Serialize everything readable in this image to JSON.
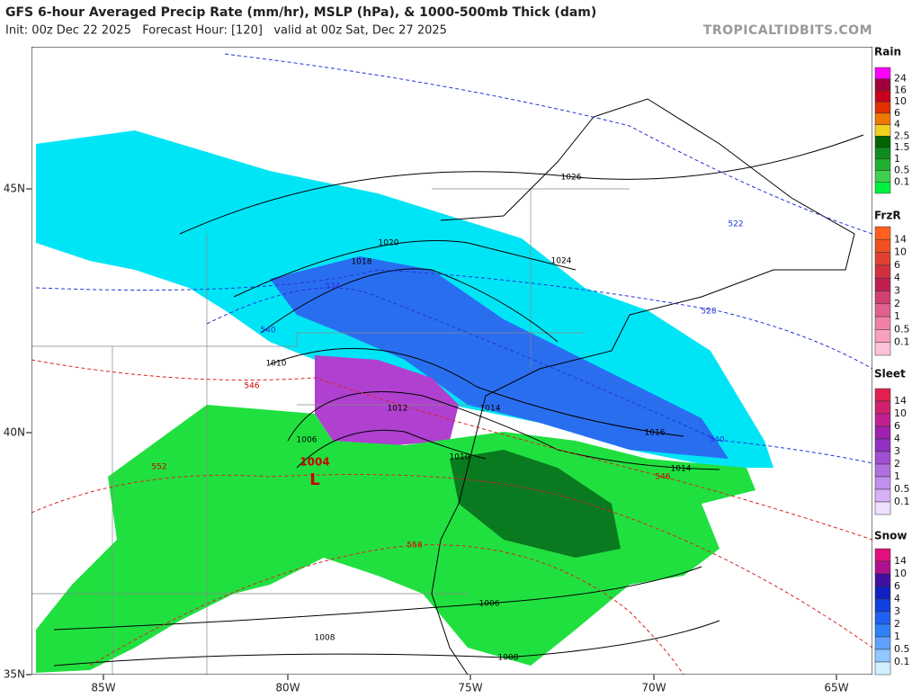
{
  "header": {
    "title": "GFS 6-hour Averaged Precip Rate (mm/hr), MSLP (hPa), & 1000-500mb Thick (dam)",
    "subtitle": "Init: 00z Dec 22 2025   Forecast Hour: [120]   valid at 00z Sat, Dec 27 2025",
    "watermark": "TROPICALTIDBITS.COM"
  },
  "map": {
    "longitude_labels": [
      "85W",
      "80W",
      "75W",
      "70W",
      "65W"
    ],
    "latitude_labels": [
      "45N",
      "40N",
      "35N"
    ],
    "isobar_labels": [
      "1026",
      "1024",
      "1020",
      "1018",
      "1014",
      "1016",
      "1014",
      "1012",
      "1010",
      "1010",
      "1006",
      "1006",
      "1008",
      "1008"
    ],
    "thickness_labels": [
      "522",
      "528",
      "534",
      "540",
      "540",
      "546",
      "546",
      "552",
      "558"
    ],
    "low": {
      "pressure": "1004",
      "symbol": "L"
    }
  },
  "legends": [
    {
      "title": "Rain",
      "labels": [
        "24",
        "16",
        "10",
        "6",
        "4",
        "2.5",
        "1.5",
        "1",
        "0.5",
        "0.1"
      ]
    },
    {
      "title": "FrzR",
      "labels": [
        "14",
        "10",
        "6",
        "4",
        "3",
        "2",
        "1",
        "0.5",
        "0.1"
      ]
    },
    {
      "title": "Sleet",
      "labels": [
        "14",
        "10",
        "6",
        "4",
        "3",
        "2",
        "1",
        "0.5",
        "0.1"
      ]
    },
    {
      "title": "Snow",
      "labels": [
        "14",
        "10",
        "6",
        "4",
        "3",
        "2",
        "1",
        "0.5",
        "0.1"
      ]
    }
  ]
}
